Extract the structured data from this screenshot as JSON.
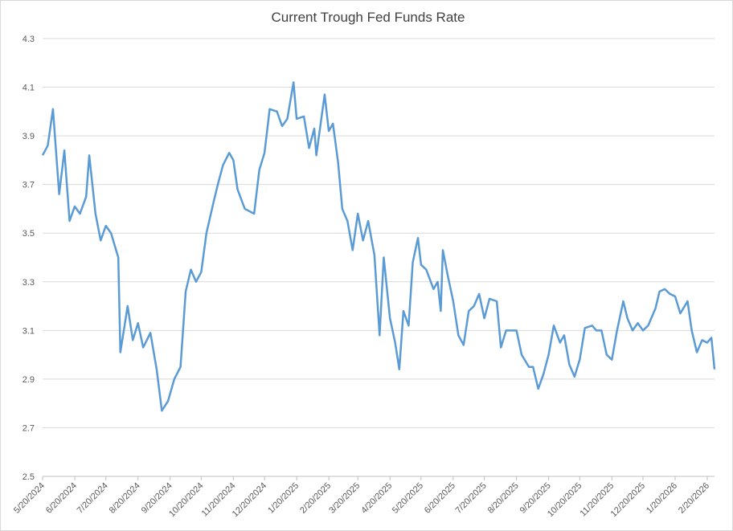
{
  "chart_data": {
    "type": "line",
    "title": "Current Trough Fed Funds Rate",
    "x": [
      "5/20/2024",
      "5/25/2024",
      "5/30/2024",
      "6/5/2024",
      "6/10/2024",
      "6/15/2024",
      "6/20/2024",
      "6/25/2024",
      "7/1/2024",
      "7/4/2024",
      "7/10/2024",
      "7/15/2024",
      "7/20/2024",
      "7/25/2024",
      "8/1/2024",
      "8/3/2024",
      "8/10/2024",
      "8/15/2024",
      "8/20/2024",
      "8/25/2024",
      "9/1/2024",
      "9/7/2024",
      "9/12/2024",
      "9/18/2024",
      "9/24/2024",
      "9/30/2024",
      "10/5/2024",
      "10/10/2024",
      "10/15/2024",
      "10/20/2024",
      "10/25/2024",
      "11/1/2024",
      "11/5/2024",
      "11/10/2024",
      "11/16/2024",
      "11/20/2024",
      "11/24/2024",
      "12/1/2024",
      "12/10/2024",
      "12/15/2024",
      "12/20/2024",
      "12/25/2024",
      "1/1/2025",
      "1/6/2025",
      "1/11/2025",
      "1/17/2025",
      "1/20/2025",
      "1/27/2025",
      "2/1/2025",
      "2/6/2025",
      "2/8/2025",
      "2/16/2025",
      "2/20/2025",
      "2/24/2025",
      "3/1/2025",
      "3/5/2025",
      "3/10/2025",
      "3/15/2025",
      "3/20/2025",
      "3/25/2025",
      "3/30/2025",
      "4/5/2025",
      "4/10/2025",
      "4/14/2025",
      "4/20/2025",
      "4/25/2025",
      "4/29/2025",
      "5/3/2025",
      "5/8/2025",
      "5/12/2025",
      "5/17/2025",
      "5/20/2025",
      "5/25/2025",
      "6/1/2025",
      "6/5/2025",
      "6/8/2025",
      "6/10/2025",
      "6/15/2025",
      "6/20/2025",
      "6/25/2025",
      "6/30/2025",
      "7/5/2025",
      "7/10/2025",
      "7/15/2025",
      "7/20/2025",
      "7/25/2025",
      "8/1/2025",
      "8/5/2025",
      "8/10/2025",
      "8/15/2025",
      "8/20/2025",
      "8/25/2025",
      "9/1/2025",
      "9/5/2025",
      "9/10/2025",
      "9/15/2025",
      "9/20/2025",
      "9/25/2025",
      "10/1/2025",
      "10/5/2025",
      "10/10/2025",
      "10/15/2025",
      "10/20/2025",
      "10/25/2025",
      "11/1/2025",
      "11/5/2025",
      "11/10/2025",
      "11/15/2025",
      "11/20/2025",
      "11/25/2025",
      "12/1/2025",
      "12/5/2025",
      "12/10/2025",
      "12/15/2025",
      "12/20/2025",
      "12/25/2025",
      "1/1/2026",
      "1/5/2026",
      "1/10/2026",
      "1/15/2026",
      "1/20/2026",
      "1/25/2026",
      "2/1/2026",
      "2/5/2026",
      "2/10/2026",
      "2/15/2026",
      "2/20/2026",
      "2/24/2026",
      "2/27/2026"
    ],
    "series": [
      {
        "name": "Current Trough Fed Funds Rate",
        "color": "#5b9bd5",
        "values": [
          3.82,
          3.86,
          4.01,
          3.66,
          3.84,
          3.55,
          3.61,
          3.58,
          3.65,
          3.82,
          3.58,
          3.47,
          3.53,
          3.5,
          3.4,
          3.01,
          3.2,
          3.06,
          3.13,
          3.03,
          3.09,
          2.94,
          2.77,
          2.81,
          2.9,
          2.95,
          3.26,
          3.35,
          3.3,
          3.34,
          3.5,
          3.63,
          3.7,
          3.78,
          3.83,
          3.8,
          3.68,
          3.6,
          3.58,
          3.76,
          3.83,
          4.01,
          4.0,
          3.94,
          3.97,
          4.12,
          3.97,
          3.98,
          3.85,
          3.93,
          3.82,
          4.07,
          3.92,
          3.95,
          3.79,
          3.6,
          3.55,
          3.43,
          3.58,
          3.47,
          3.55,
          3.41,
          3.08,
          3.4,
          3.15,
          3.05,
          2.94,
          3.18,
          3.12,
          3.38,
          3.48,
          3.37,
          3.35,
          3.27,
          3.3,
          3.18,
          3.43,
          3.32,
          3.22,
          3.08,
          3.04,
          3.18,
          3.2,
          3.25,
          3.15,
          3.23,
          3.22,
          3.03,
          3.1,
          3.1,
          3.1,
          3.0,
          2.95,
          2.95,
          2.86,
          2.92,
          3.0,
          3.12,
          3.05,
          3.08,
          2.96,
          2.91,
          2.98,
          3.11,
          3.12,
          3.1,
          3.1,
          3.0,
          2.98,
          3.1,
          3.22,
          3.15,
          3.1,
          3.13,
          3.1,
          3.12,
          3.19,
          3.26,
          3.27,
          3.25,
          3.24,
          3.17,
          3.22,
          3.1,
          3.01,
          3.06,
          3.05,
          3.07,
          2.94
        ]
      }
    ],
    "xlim": [
      "5/20/2024",
      "2/27/2026"
    ],
    "xticks": [
      "5/20/2024",
      "6/20/2024",
      "7/20/2024",
      "8/20/2024",
      "9/20/2024",
      "10/20/2024",
      "11/20/2024",
      "12/20/2024",
      "1/20/2025",
      "2/20/2025",
      "3/20/2025",
      "4/20/2025",
      "5/20/2025",
      "6/20/2025",
      "7/20/2025",
      "8/20/2025",
      "9/20/2025",
      "10/20/2025",
      "11/20/2025",
      "12/20/2025",
      "1/20/2026",
      "2/20/2026"
    ],
    "ylim": [
      2.5,
      4.3
    ],
    "yticks": [
      2.5,
      2.7,
      2.9,
      3.1,
      3.3,
      3.5,
      3.7,
      3.9,
      4.1,
      4.3
    ],
    "grid": true
  }
}
